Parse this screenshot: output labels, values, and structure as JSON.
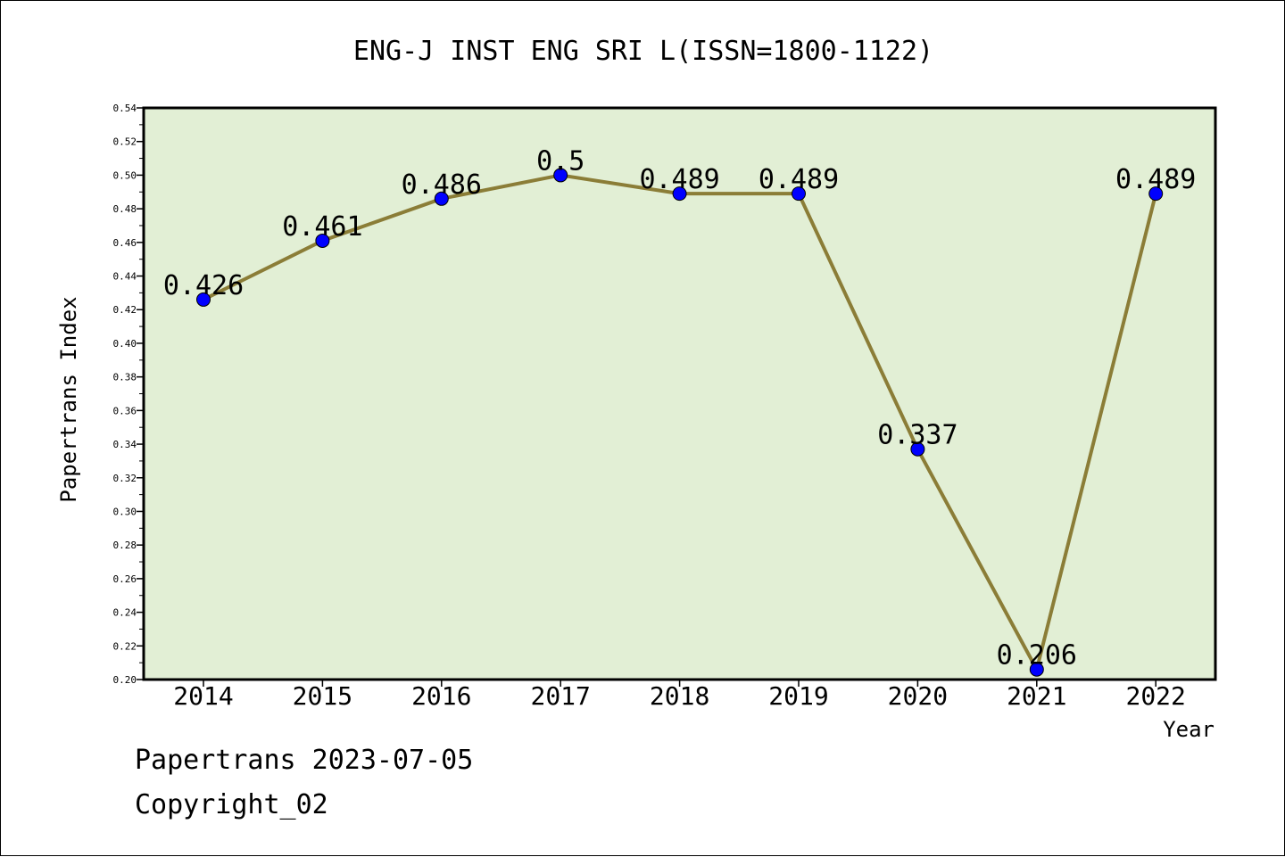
{
  "chart_data": {
    "type": "line",
    "title": "ENG-J INST ENG SRI L(ISSN=1800-1122)",
    "xlabel": "Year",
    "ylabel": "Papertrans Index",
    "categories": [
      "2014",
      "2015",
      "2016",
      "2017",
      "2018",
      "2019",
      "2020",
      "2021",
      "2022"
    ],
    "series": [
      {
        "values": [
          0.426,
          0.461,
          0.486,
          0.5,
          0.489,
          0.489,
          0.337,
          0.206,
          0.489
        ],
        "labels": [
          "0.426",
          "0.461",
          "0.486",
          "0.5",
          "0.489",
          "0.489",
          "0.337",
          "0.206",
          "0.489"
        ]
      }
    ],
    "ylim": [
      0.2,
      0.54
    ],
    "yticks": [
      "0.20",
      "0.22",
      "0.24",
      "0.26",
      "0.28",
      "0.30",
      "0.32",
      "0.34",
      "0.36",
      "0.38",
      "0.40",
      "0.42",
      "0.44",
      "0.46",
      "0.48",
      "0.50",
      "0.52",
      "0.54"
    ],
    "grid": false,
    "colors": {
      "plot_background": "#e2efd5",
      "line": "#8b7d37",
      "marker": "#0000ff"
    }
  },
  "footer": {
    "date_line": "Papertrans 2023-07-05",
    "copyright": "Copyright_02"
  }
}
